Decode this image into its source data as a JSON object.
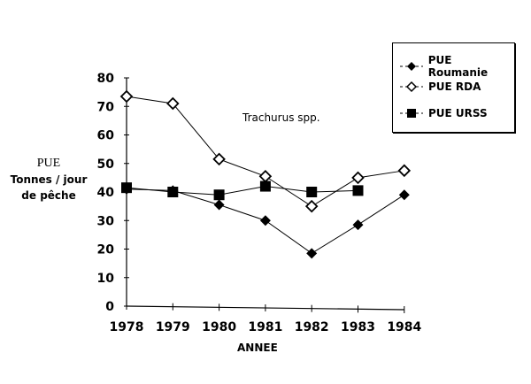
{
  "chart_data": {
    "type": "line",
    "title": "",
    "annotation": "Trachurus spp.",
    "xlabel": "ANNEE",
    "ylabel": "PUE Tonnes / jour de pêche",
    "ylabel_lines": [
      "PUE",
      "Tonnes / jour",
      "de pêche"
    ],
    "x": [
      "1978",
      "1979",
      "1980",
      "1981",
      "1982",
      "1983",
      "1984"
    ],
    "ylim": [
      0,
      80
    ],
    "yticks": [
      0,
      10,
      20,
      30,
      40,
      50,
      60,
      70,
      80
    ],
    "grid": false,
    "legend_position": "top-right",
    "series": [
      {
        "name": "PUE Roumanie",
        "marker": "filled-diamond",
        "values": [
          41,
          40.5,
          35.5,
          30,
          18.5,
          28.5,
          39
        ]
      },
      {
        "name": "PUE RDA",
        "marker": "open-diamond",
        "values": [
          73.5,
          71,
          51.5,
          45.5,
          35,
          45,
          47.5
        ]
      },
      {
        "name": "PUE URSS",
        "marker": "filled-square",
        "values": [
          41.5,
          40,
          39,
          42,
          40,
          40.5,
          null
        ]
      }
    ]
  },
  "legend": {
    "items": [
      "PUE Roumanie",
      "PUE RDA",
      "PUE URSS"
    ]
  }
}
